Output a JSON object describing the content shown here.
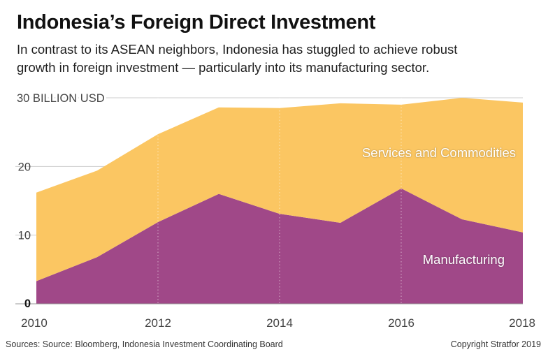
{
  "header": {
    "title": "Indonesia’s Foreign Direct Investment",
    "subtitle_line1": "In contrast to its ASEAN neighbors, Indonesia has stuggled to achieve robust",
    "subtitle_line2": "growth in foreign investment — particularly into its manufacturing sector."
  },
  "footer": {
    "source": "Sources: Source: Bloomberg, Indonesia Investment Coordinating Board",
    "copyright": "Copyright Stratfor 2019"
  },
  "colors": {
    "manufacturing": "#a04888",
    "services": "#fbc662",
    "grid": "#cccccc",
    "axis_text": "#444444"
  },
  "chart_data": {
    "type": "area",
    "stacked": true,
    "title": "Indonesia’s Foreign Direct Investment",
    "ylabel": "30 BILLION USD",
    "x": [
      2010,
      2011,
      2012,
      2013,
      2014,
      2015,
      2016,
      2017,
      2018
    ],
    "x_ticks": [
      "2010",
      "2012",
      "2014",
      "2016",
      "2018"
    ],
    "y_ticks": [
      "0",
      "10",
      "20"
    ],
    "ylim": [
      0,
      30
    ],
    "grid": true,
    "series": [
      {
        "name": "Manufacturing",
        "values": [
          3.3,
          6.8,
          11.9,
          16.0,
          13.1,
          11.8,
          16.8,
          12.3,
          10.4
        ]
      },
      {
        "name": "Services and Commodities",
        "values": [
          12.9,
          12.6,
          12.8,
          12.6,
          15.4,
          17.4,
          12.2,
          17.7,
          18.9
        ]
      }
    ]
  }
}
